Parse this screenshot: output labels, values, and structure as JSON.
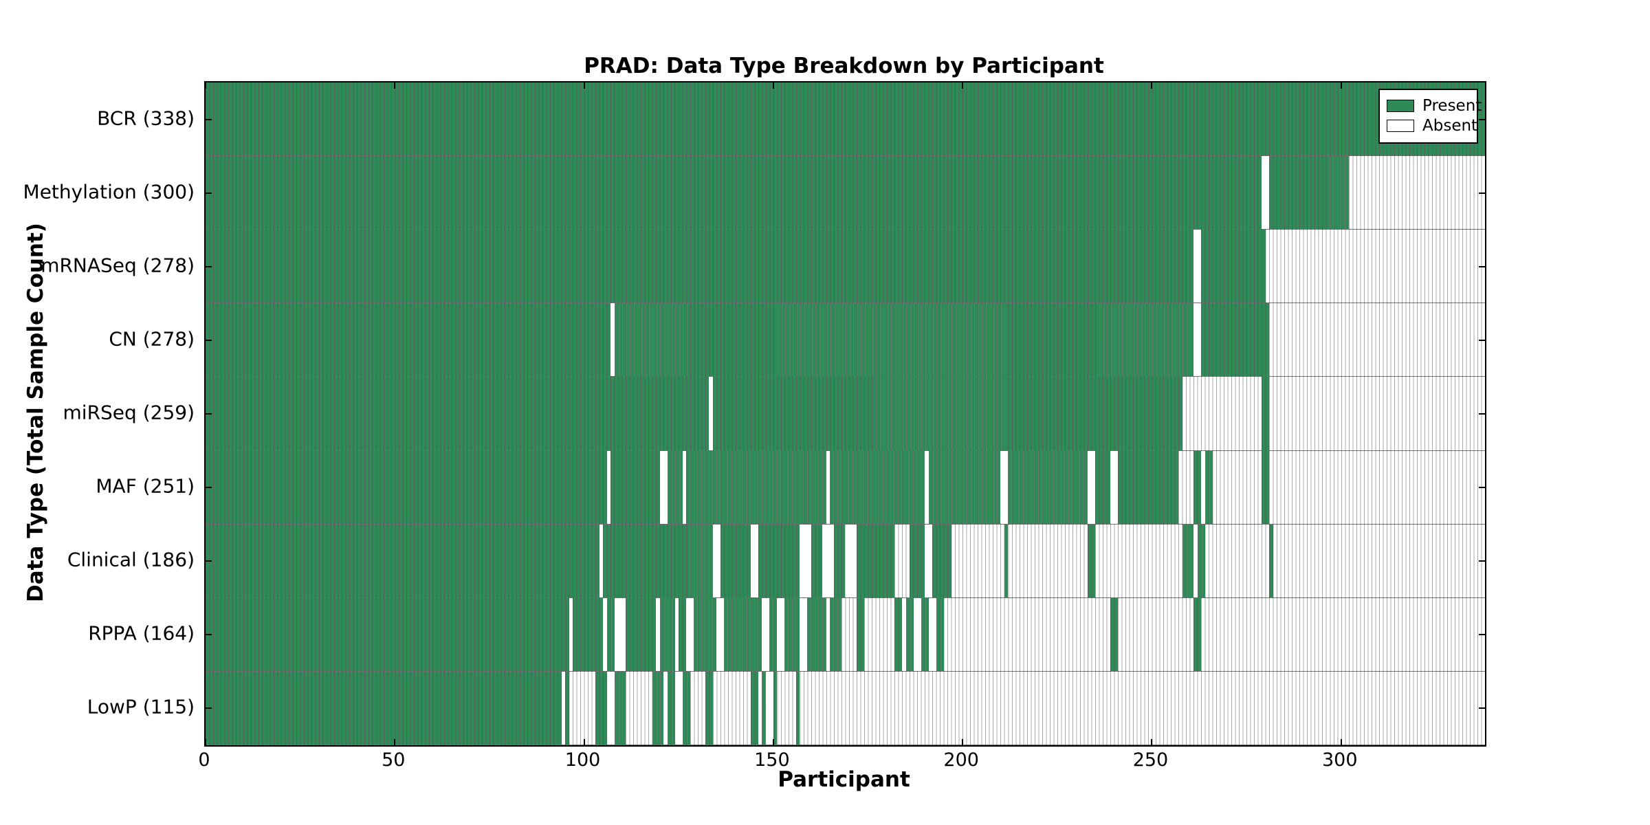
{
  "title": "PRAD: Data Type Breakdown by Participant",
  "axes": {
    "xlabel": "Participant",
    "ylabel": "Data Type (Total Sample Count)"
  },
  "legend": {
    "present_label": "Present",
    "absent_label": "Absent"
  },
  "colors": {
    "present": "#2e8b57",
    "absent": "#ffffff",
    "cell_edge_on_green": "rgba(10,40,25,0.55)",
    "cell_edge_on_white": "#a9a9a9",
    "border": "#000000"
  },
  "chart_data": {
    "type": "heatmap",
    "title": "PRAD: Data Type Breakdown by Participant",
    "xlabel": "Participant",
    "ylabel": "Data Type (Total Sample Count)",
    "x_ticks": [
      0,
      50,
      100,
      150,
      200,
      250,
      300
    ],
    "xlim": [
      0,
      338
    ],
    "n_participants": 338,
    "legend_entries": [
      "Present",
      "Absent"
    ],
    "legend_position": "upper right",
    "grid": false,
    "rows": [
      {
        "label": "BCR (338)",
        "name": "BCR",
        "count": 338,
        "present_ranges": [
          [
            0,
            338
          ]
        ]
      },
      {
        "label": "Methylation (300)",
        "name": "Methylation",
        "count": 300,
        "present_ranges": [
          [
            0,
            279
          ],
          [
            281,
            302
          ]
        ]
      },
      {
        "label": "mRNASeq (278)",
        "name": "mRNASeq",
        "count": 278,
        "present_ranges": [
          [
            0,
            261
          ],
          [
            263,
            280
          ]
        ]
      },
      {
        "label": "CN (278)",
        "name": "CN",
        "count": 278,
        "present_ranges": [
          [
            0,
            107
          ],
          [
            108,
            261
          ],
          [
            263,
            281
          ]
        ]
      },
      {
        "label": "miRSeq (259)",
        "name": "miRSeq",
        "count": 259,
        "present_ranges": [
          [
            0,
            133
          ],
          [
            134,
            258
          ],
          [
            279,
            281
          ]
        ]
      },
      {
        "label": "MAF (251)",
        "name": "MAF",
        "count": 251,
        "present_ranges": [
          [
            0,
            106
          ],
          [
            107,
            120
          ],
          [
            122,
            126
          ],
          [
            127,
            164
          ],
          [
            165,
            190
          ],
          [
            191,
            210
          ],
          [
            212,
            233
          ],
          [
            235,
            239
          ],
          [
            241,
            257
          ],
          [
            261,
            263
          ],
          [
            264,
            266
          ],
          [
            279,
            281
          ]
        ]
      },
      {
        "label": "Clinical (186)",
        "name": "Clinical",
        "count": 186,
        "present_ranges": [
          [
            0,
            104
          ],
          [
            105,
            134
          ],
          [
            136,
            144
          ],
          [
            146,
            157
          ],
          [
            160,
            163
          ],
          [
            166,
            169
          ],
          [
            172,
            182
          ],
          [
            186,
            190
          ],
          [
            192,
            197
          ],
          [
            211,
            212
          ],
          [
            233,
            235
          ],
          [
            258,
            261
          ],
          [
            262,
            264
          ],
          [
            281,
            282
          ]
        ]
      },
      {
        "label": "RPPA (164)",
        "name": "RPPA",
        "count": 164,
        "present_ranges": [
          [
            0,
            96
          ],
          [
            97,
            105
          ],
          [
            106,
            108
          ],
          [
            111,
            119
          ],
          [
            120,
            124
          ],
          [
            125,
            127
          ],
          [
            129,
            135
          ],
          [
            137,
            147
          ],
          [
            149,
            151
          ],
          [
            153,
            157
          ],
          [
            159,
            164
          ],
          [
            165,
            168
          ],
          [
            172,
            174
          ],
          [
            182,
            184
          ],
          [
            185,
            187
          ],
          [
            189,
            191
          ],
          [
            193,
            195
          ],
          [
            239,
            241
          ],
          [
            261,
            263
          ]
        ]
      },
      {
        "label": "LowP (115)",
        "name": "LowP",
        "count": 115,
        "present_ranges": [
          [
            0,
            94
          ],
          [
            95,
            96
          ],
          [
            103,
            106
          ],
          [
            108,
            111
          ],
          [
            118,
            121
          ],
          [
            122,
            124
          ],
          [
            126,
            128
          ],
          [
            132,
            134
          ],
          [
            144,
            146
          ],
          [
            147,
            148
          ],
          [
            150,
            151
          ],
          [
            156,
            157
          ]
        ]
      }
    ]
  }
}
